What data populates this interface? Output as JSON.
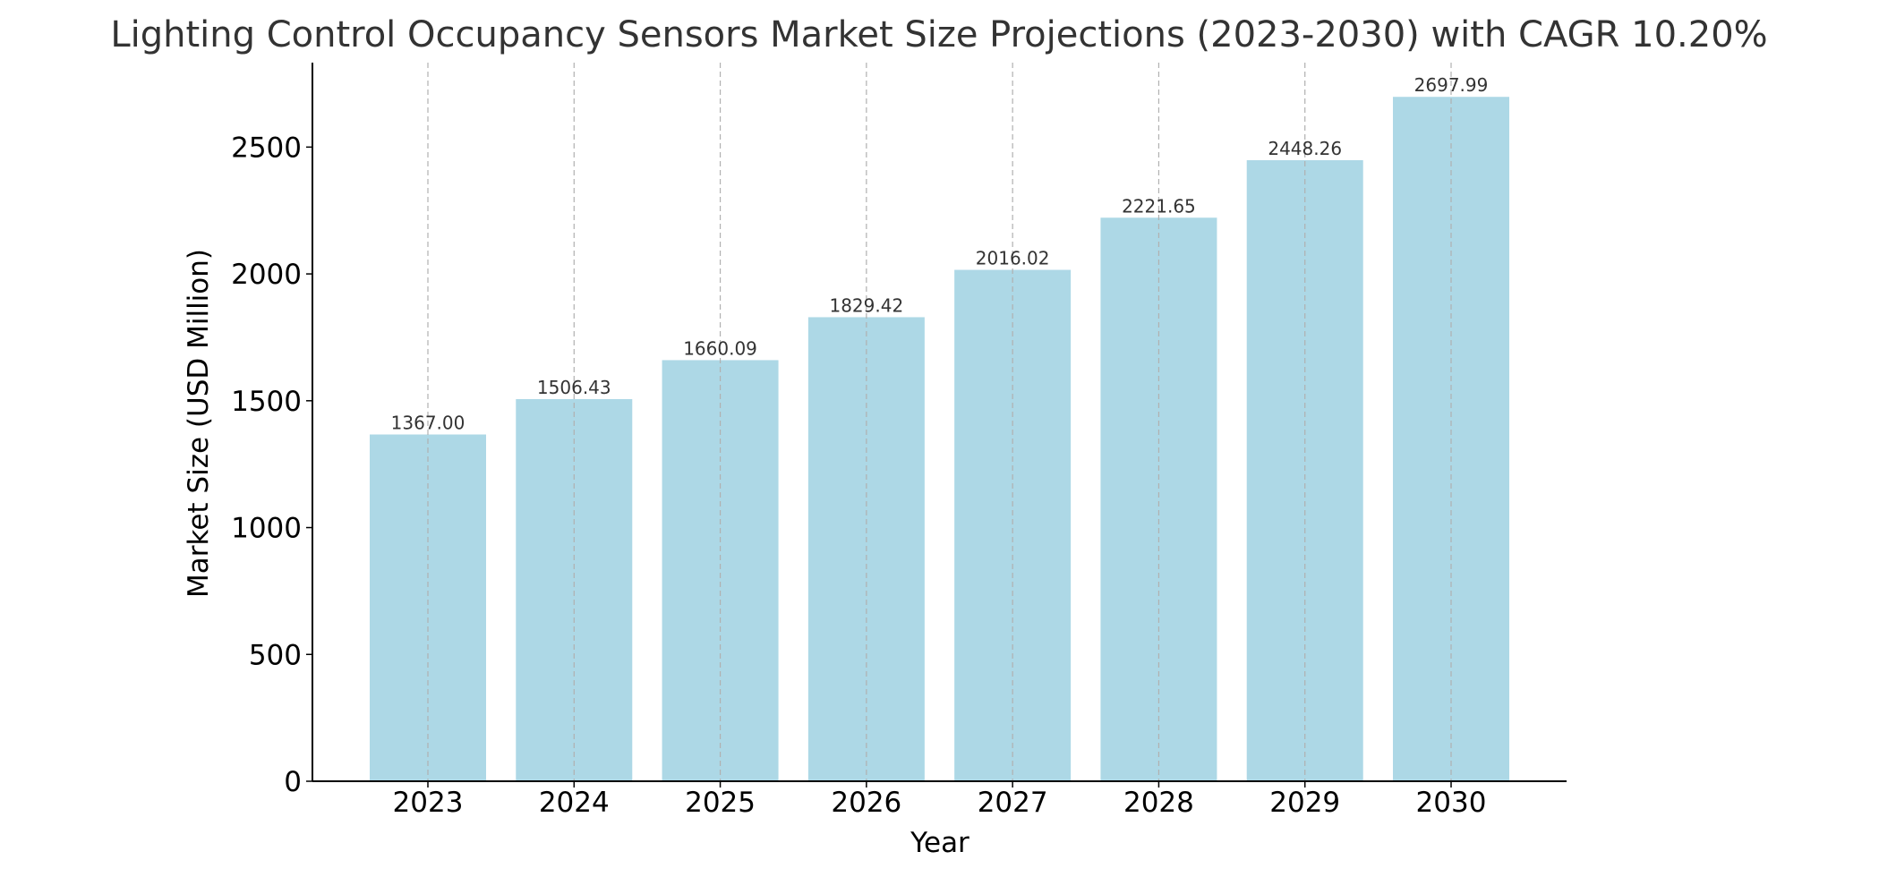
{
  "chart_data": {
    "type": "bar",
    "title": "Lighting Control Occupancy Sensors Market Size Projections (2023-2030) with CAGR 10.20%",
    "xlabel": "Year",
    "ylabel": "Market Size (USD Million)",
    "categories": [
      "2023",
      "2024",
      "2025",
      "2026",
      "2027",
      "2028",
      "2029",
      "2030"
    ],
    "values": [
      1367.0,
      1506.43,
      1660.09,
      1829.42,
      2016.02,
      2221.65,
      2448.26,
      2697.99
    ],
    "value_labels": [
      "1367.00",
      "1506.43",
      "1660.09",
      "1829.42",
      "2016.02",
      "2221.65",
      "2448.26",
      "2697.99"
    ],
    "yticks": [
      0,
      500,
      1000,
      1500,
      2000,
      2500
    ],
    "ylim": [
      0,
      2832.89
    ],
    "grid": "vertical dashed",
    "bar_color": "#add8e6",
    "text_color": "#333333",
    "axis_color": "#000000",
    "grid_color": "#b0b0b0"
  }
}
